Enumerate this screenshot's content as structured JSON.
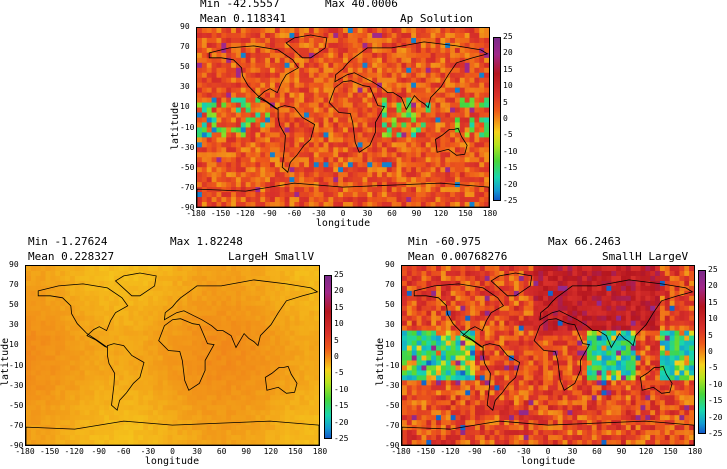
{
  "chart_data": [
    {
      "type": "heatmap",
      "stats": {
        "min": "Min  -42.5557",
        "max": "Max  40.0006",
        "mean": "Mean  0.118341"
      },
      "title": "Ap Solution",
      "xlabel": "longitude",
      "ylabel": "latitude",
      "xticks": [
        "-180",
        "-150",
        "-120",
        "-90",
        "-60",
        "-30",
        "0",
        "30",
        "60",
        "90",
        "120",
        "150",
        "180"
      ],
      "yticks": [
        "90",
        "70",
        "50",
        "30",
        "10",
        "-10",
        "-30",
        "-50",
        "-70",
        "-90"
      ],
      "xlim": [
        -180,
        180
      ],
      "ylim": [
        -90,
        90
      ],
      "colorbar": {
        "ticks": [
          "25",
          "20",
          "15",
          "10",
          "5",
          "0",
          "-5",
          "-10",
          "-15",
          "-20",
          "-25"
        ],
        "range": [
          -25,
          25
        ]
      },
      "field": "noisy mostly warm (5 to 15) with scattered negative patches in the tropical Pacific and Indian Ocean"
    },
    {
      "type": "heatmap",
      "stats": {
        "min": "Min  -1.27624",
        "max": "Max  1.82248",
        "mean": "Mean  0.228327"
      },
      "title": "LargeH SmallV",
      "xlabel": "longitude",
      "ylabel": "latitude",
      "xticks": [
        "-180",
        "-150",
        "-120",
        "-90",
        "-60",
        "-30",
        "0",
        "30",
        "60",
        "90",
        "120",
        "150",
        "180"
      ],
      "yticks": [
        "90",
        "70",
        "50",
        "30",
        "10",
        "-10",
        "-30",
        "-50",
        "-70",
        "-90"
      ],
      "xlim": [
        -180,
        180
      ],
      "ylim": [
        -90,
        90
      ],
      "colorbar": {
        "ticks": [
          "25",
          "20",
          "15",
          "10",
          "5",
          "0",
          "-5",
          "-10",
          "-15",
          "-20",
          "-25"
        ],
        "range": [
          -25,
          25
        ]
      },
      "field": "smooth near-zero values (orange)"
    },
    {
      "type": "heatmap",
      "stats": {
        "min": "Min  -60.975",
        "max": "Max  66.2463",
        "mean": "Mean  0.00768276"
      },
      "title": "SmallH LargeV",
      "xlabel": "longitude",
      "ylabel": "latitude",
      "xticks": [
        "-180",
        "-150",
        "-120",
        "-90",
        "-60",
        "-30",
        "0",
        "30",
        "60",
        "90",
        "120",
        "150",
        "180"
      ],
      "yticks": [
        "90",
        "70",
        "50",
        "30",
        "10",
        "-10",
        "-30",
        "-50",
        "-70",
        "-90"
      ],
      "xlim": [
        -180,
        180
      ],
      "ylim": [
        -90,
        90
      ],
      "colorbar": {
        "ticks": [
          "25",
          "20",
          "15",
          "10",
          "5",
          "0",
          "-5",
          "-10",
          "-15",
          "-20",
          "-25"
        ],
        "range": [
          -25,
          25
        ]
      },
      "field": "noisy field with strong positive (red) over northern continents and negative (green/cyan) in tropical Pacific and Indian Ocean"
    }
  ]
}
